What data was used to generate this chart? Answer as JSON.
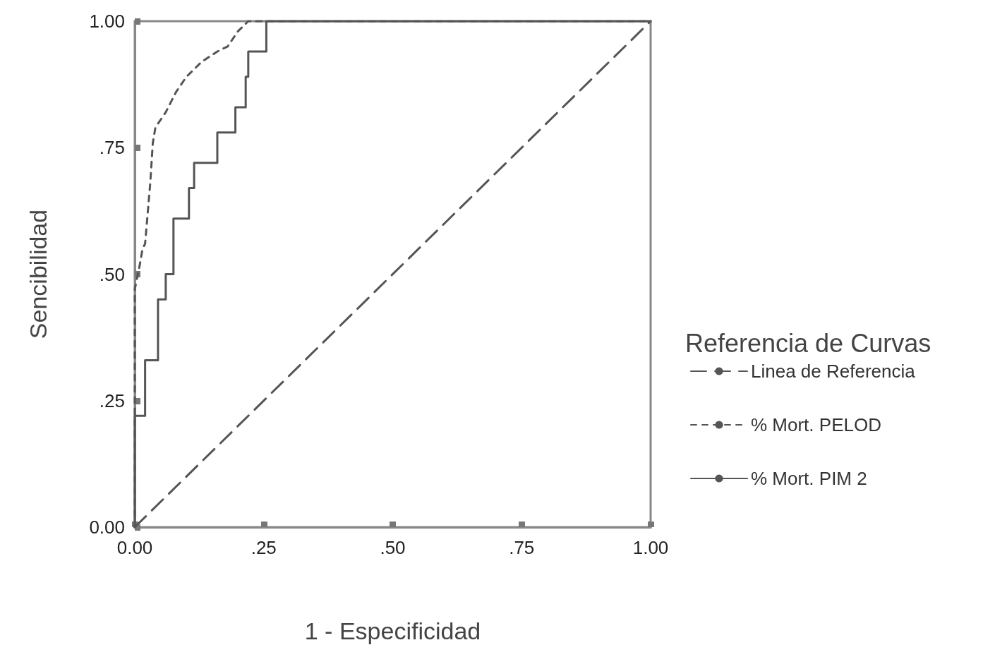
{
  "chart_data": {
    "type": "line",
    "xlabel": "1 - Especificidad",
    "ylabel": "Sencibilidad",
    "legend_title": "Referencia de Curvas",
    "legend": "right",
    "grid": false,
    "marker": "none",
    "xlim": [
      0,
      1
    ],
    "ylim": [
      0,
      1
    ],
    "xticks": [
      {
        "value": 0,
        "label": "0.00"
      },
      {
        "value": 0.25,
        "label": ".25"
      },
      {
        "value": 0.5,
        "label": ".50"
      },
      {
        "value": 0.75,
        "label": ".75"
      },
      {
        "value": 1,
        "label": "1.00"
      }
    ],
    "yticks": [
      {
        "value": 0,
        "label": "0.00"
      },
      {
        "value": 0.25,
        "label": ".25"
      },
      {
        "value": 0.5,
        "label": ".50"
      },
      {
        "value": 0.75,
        "label": ".75"
      },
      {
        "value": 1,
        "label": "1.00"
      }
    ],
    "series": [
      {
        "name": "Linea de Referencia",
        "color": "#555555",
        "line_style": "dashed",
        "x": [
          0,
          1
        ],
        "values": [
          0,
          1
        ]
      },
      {
        "name": "% Mort. PELOD",
        "color": "#555555",
        "line_style": "dotted",
        "x": [
          0,
          0,
          0.01,
          0.015,
          0.02,
          0.025,
          0.03,
          0.035,
          0.04,
          0.06,
          0.08,
          0.1,
          0.13,
          0.16,
          0.18,
          0.2,
          0.22,
          1
        ],
        "values": [
          0,
          0.47,
          0.52,
          0.55,
          0.56,
          0.62,
          0.68,
          0.76,
          0.79,
          0.82,
          0.86,
          0.89,
          0.92,
          0.94,
          0.95,
          0.98,
          1,
          1
        ]
      },
      {
        "name": "% Mort. PIM 2",
        "color": "#555555",
        "line_style": "solid",
        "x": [
          0,
          0,
          0.02,
          0.02,
          0.045,
          0.045,
          0.06,
          0.06,
          0.075,
          0.075,
          0.105,
          0.105,
          0.115,
          0.115,
          0.16,
          0.16,
          0.195,
          0.195,
          0.215,
          0.215,
          0.22,
          0.22,
          0.255,
          0.255,
          1
        ],
        "values": [
          0,
          0.22,
          0.22,
          0.33,
          0.33,
          0.45,
          0.45,
          0.5,
          0.5,
          0.61,
          0.61,
          0.67,
          0.67,
          0.72,
          0.72,
          0.78,
          0.78,
          0.83,
          0.83,
          0.89,
          0.89,
          0.94,
          0.94,
          1,
          1
        ]
      }
    ]
  }
}
